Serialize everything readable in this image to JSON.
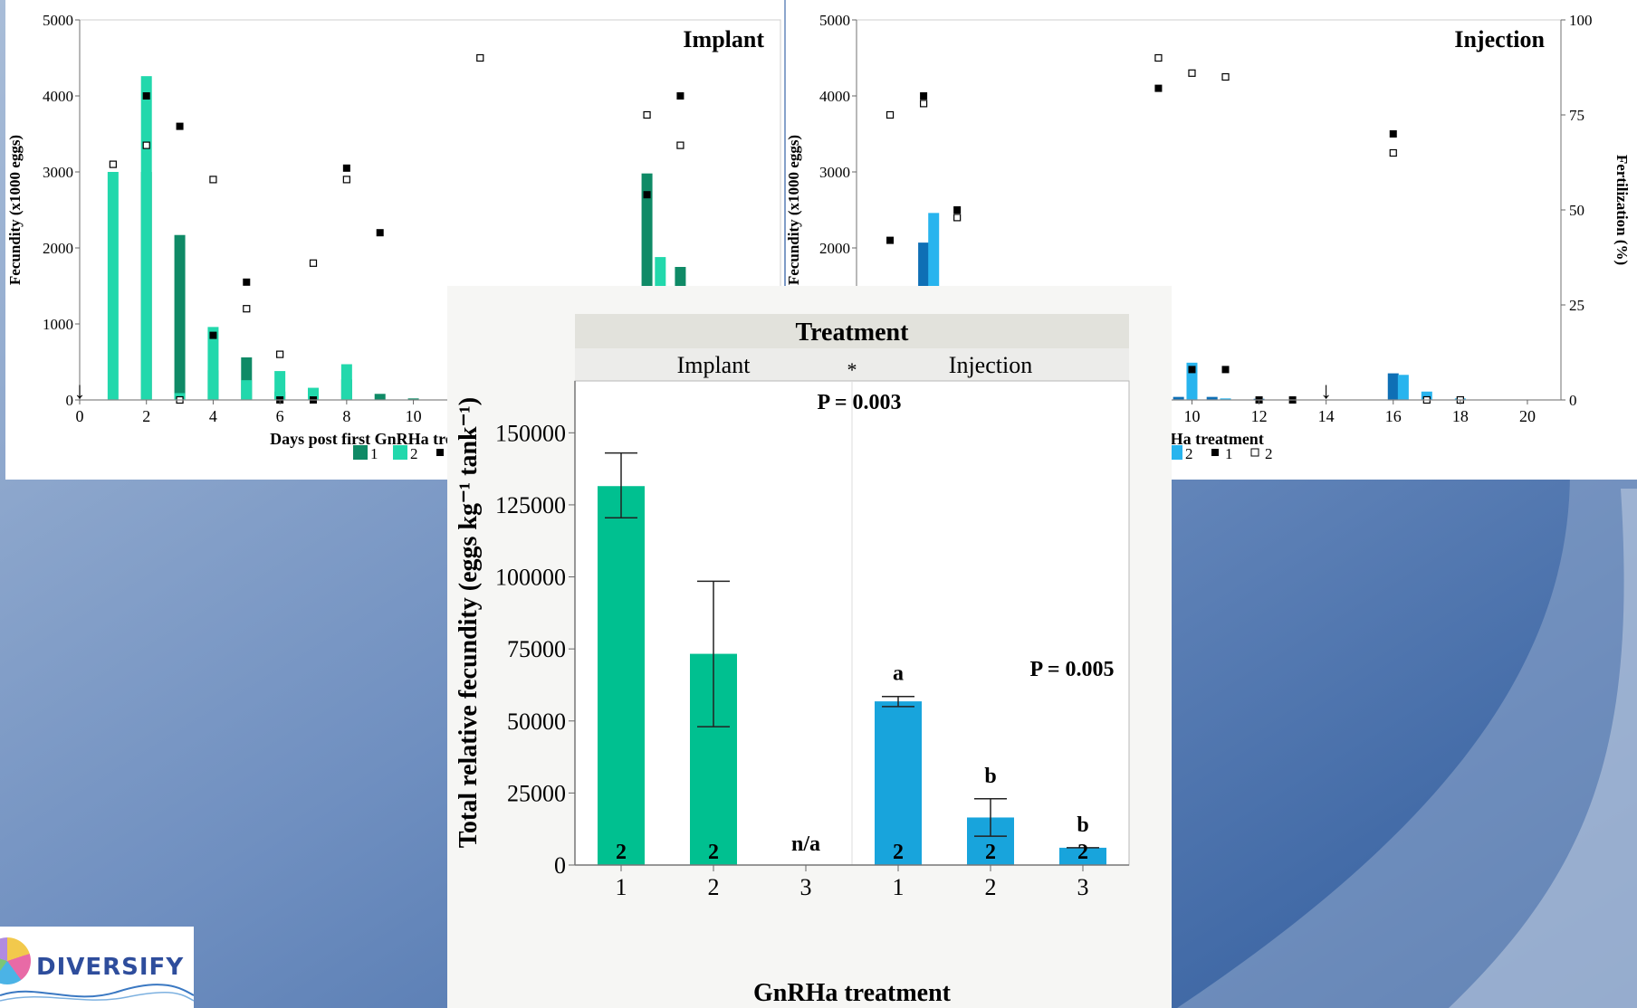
{
  "chart_data": [
    {
      "id": "implant",
      "type": "bar+scatter",
      "title": "Implant",
      "xlabel": "Days post first GnRHa treatment",
      "ylabel": "Fecundity (x1000 eggs)",
      "xlim": [
        0,
        21
      ],
      "ylim": [
        0,
        5000
      ],
      "xticks": [
        0,
        2,
        4,
        6,
        8,
        10
      ],
      "yticks": [
        0,
        1000,
        2000,
        3000,
        4000,
        5000
      ],
      "legend": [
        "1",
        "2",
        "1",
        "2"
      ],
      "colors": {
        "bar1": "#0f8a66",
        "bar2": "#22d8ac"
      },
      "bars": {
        "series1": [
          [
            2,
            3000
          ],
          [
            3,
            2170
          ],
          [
            4,
            390
          ],
          [
            5,
            560
          ],
          [
            6,
            110
          ],
          [
            7,
            140
          ],
          [
            8,
            270
          ],
          [
            9,
            80
          ],
          [
            10,
            20
          ],
          [
            17,
            2980
          ],
          [
            18,
            1750
          ]
        ],
        "series2": [
          [
            1,
            3000
          ],
          [
            2,
            4260
          ],
          [
            3,
            90
          ],
          [
            4,
            960
          ],
          [
            5,
            260
          ],
          [
            6,
            380
          ],
          [
            7,
            160
          ],
          [
            8,
            470
          ],
          [
            17.4,
            1880
          ]
        ]
      },
      "fertilization": {
        "series1": [
          [
            2,
            80
          ],
          [
            3,
            72
          ],
          [
            4,
            17
          ],
          [
            5,
            31
          ],
          [
            6,
            0
          ],
          [
            7,
            0
          ],
          [
            8,
            61
          ],
          [
            9,
            44
          ],
          [
            17,
            54
          ],
          [
            18,
            80
          ]
        ],
        "series2": [
          [
            1,
            62
          ],
          [
            2,
            67
          ],
          [
            3,
            0
          ],
          [
            4,
            58
          ],
          [
            5,
            24
          ],
          [
            6,
            12
          ],
          [
            7,
            36
          ],
          [
            8,
            58
          ],
          [
            12,
            90
          ],
          [
            17,
            75
          ],
          [
            18,
            67
          ]
        ]
      },
      "arrows": [
        0
      ]
    },
    {
      "id": "injection",
      "type": "bar+scatter",
      "title": "Injection",
      "xlabel": "Days post first GnRHa treatment",
      "ylabel": "Fecundity (x1000 eggs)",
      "y2label": "Fertilization (%)",
      "xlim": [
        0,
        21
      ],
      "ylim": [
        0,
        5000
      ],
      "y2lim": [
        0,
        100
      ],
      "xticks": [
        10,
        12,
        14,
        16,
        18,
        20
      ],
      "yticks": [
        2000,
        3000,
        4000,
        5000
      ],
      "y2ticks": [
        0,
        25,
        50,
        75,
        100
      ],
      "legend": [
        "2",
        "1",
        "2"
      ],
      "colors": {
        "bar1": "#0e6fb5",
        "bar2": "#28b4ee"
      },
      "bars": {
        "series1": [
          [
            2,
            2070
          ],
          [
            9.6,
            40
          ],
          [
            10.6,
            40
          ],
          [
            12,
            15
          ],
          [
            16,
            350
          ]
        ],
        "series2": [
          [
            2.3,
            2460
          ],
          [
            10,
            490
          ],
          [
            11,
            20
          ],
          [
            16.3,
            330
          ],
          [
            17,
            110
          ],
          [
            18,
            20
          ]
        ]
      },
      "fertilization": {
        "series1": [
          [
            1,
            42
          ],
          [
            2,
            80
          ],
          [
            3,
            50
          ],
          [
            9,
            82
          ],
          [
            10,
            8
          ],
          [
            11,
            8
          ],
          [
            12,
            0
          ],
          [
            13,
            0
          ],
          [
            16,
            70
          ]
        ],
        "series2": [
          [
            1,
            75
          ],
          [
            2,
            78
          ],
          [
            3,
            48
          ],
          [
            9,
            90
          ],
          [
            10,
            86
          ],
          [
            11,
            85
          ],
          [
            16,
            65
          ],
          [
            17,
            0
          ],
          [
            18,
            0
          ]
        ]
      },
      "arrows": [
        14
      ]
    },
    {
      "id": "total",
      "type": "bar",
      "title": "Treatment",
      "groups": [
        "Implant",
        "Injection"
      ],
      "group_separator": "*",
      "xlabel": "GnRHa treatment",
      "ylabel": "Total relative fecundity (eggs kg⁻¹ tank⁻¹)",
      "ylim": [
        0,
        168000
      ],
      "yticks": [
        0,
        25000,
        50000,
        75000,
        100000,
        125000,
        150000
      ],
      "categories": [
        "1",
        "2",
        "3",
        "1",
        "2",
        "3"
      ],
      "values": [
        131500,
        73300,
        null,
        56800,
        16500,
        6000
      ],
      "errors": [
        [
          120500,
          143000
        ],
        [
          48000,
          98500
        ],
        null,
        [
          55000,
          58500
        ],
        [
          10000,
          23000
        ],
        [
          6000,
          6000
        ]
      ],
      "n": [
        "2",
        "2",
        "n/a",
        "2",
        "2",
        "2"
      ],
      "letters": [
        "",
        "",
        "",
        "a",
        "b",
        "b"
      ],
      "colors": {
        "implant": "#00c090",
        "injection": "#18a4dc"
      },
      "annotations": {
        "p_treatment": "P = 0.003",
        "p_injection": "P = 0.005"
      }
    }
  ],
  "logo": {
    "text": "DIVERSIFY"
  }
}
